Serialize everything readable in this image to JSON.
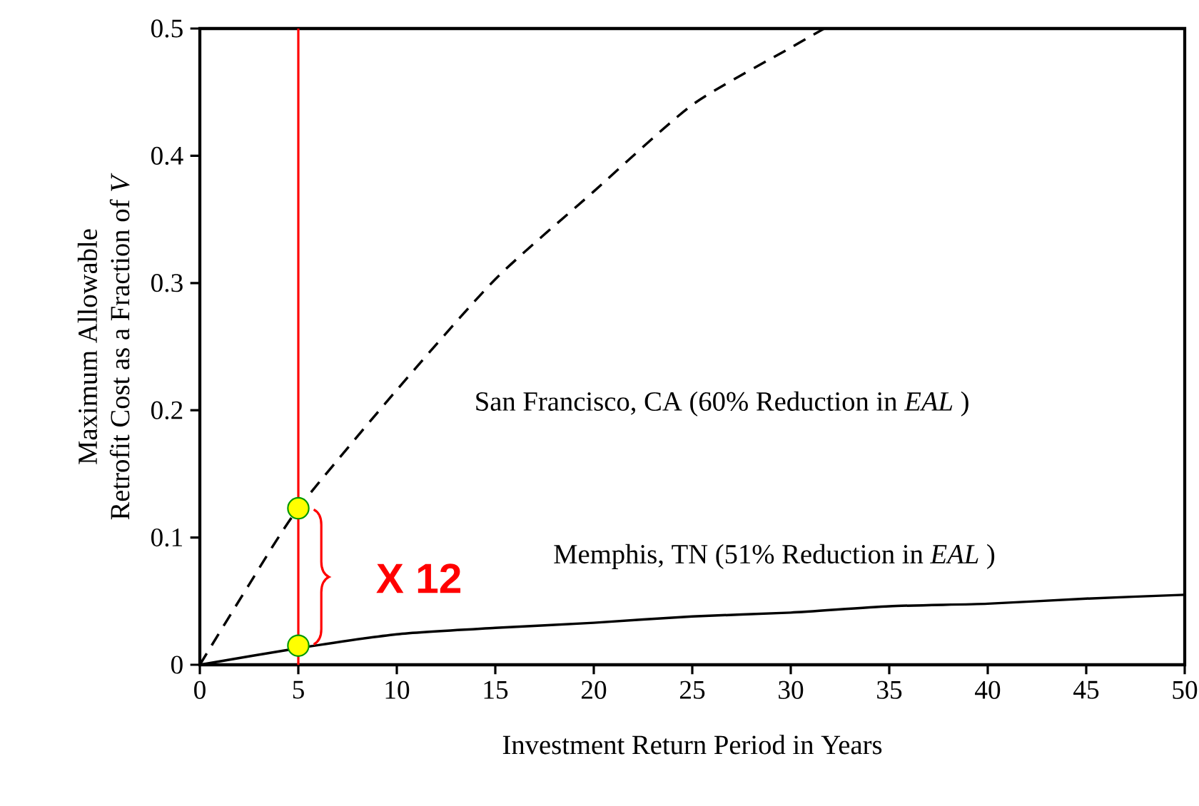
{
  "chart_data": {
    "type": "line",
    "xlabel": "Investment Return Period in Years",
    "ylabel": "Maximum Allowable\nRetrofit Cost as a Fraction of *V*",
    "xlim": [
      0,
      50
    ],
    "ylim": [
      0,
      0.5
    ],
    "xticks": [
      0,
      5,
      10,
      15,
      20,
      25,
      30,
      35,
      40,
      45,
      50
    ],
    "yticks": [
      0,
      0.1,
      0.2,
      0.3,
      0.4,
      0.5
    ],
    "grid": false,
    "series": [
      {
        "name": "San Francisco, CA (60% Reduction in *EAL* )",
        "color": "#000000",
        "line_style": "dashed",
        "marker": "none",
        "x": [
          0,
          2.5,
          5,
          10,
          15,
          20,
          25,
          30,
          31.7
        ],
        "values": [
          0,
          0.063,
          0.123,
          0.216,
          0.303,
          0.372,
          0.44,
          0.485,
          0.5
        ]
      },
      {
        "name": "Memphis, TN (51% Reduction in *EAL* )",
        "color": "#000000",
        "line_style": "solid",
        "marker": "none",
        "x": [
          0,
          5,
          10,
          15,
          20,
          25,
          30,
          35,
          40,
          45,
          50
        ],
        "values": [
          0,
          0.013,
          0.024,
          0.029,
          0.033,
          0.038,
          0.041,
          0.046,
          0.048,
          0.052,
          0.055
        ]
      },
      {
        "type": "scatter",
        "color": "#ffff00",
        "marker": "circle",
        "x": [
          5,
          5
        ],
        "values": [
          0.123,
          0.015
        ]
      }
    ],
    "ref_lines": [
      {
        "axis": "x",
        "value": 5,
        "color": "#ff0000",
        "line_style": "solid"
      }
    ],
    "annotations": [
      "X 12"
    ]
  }
}
